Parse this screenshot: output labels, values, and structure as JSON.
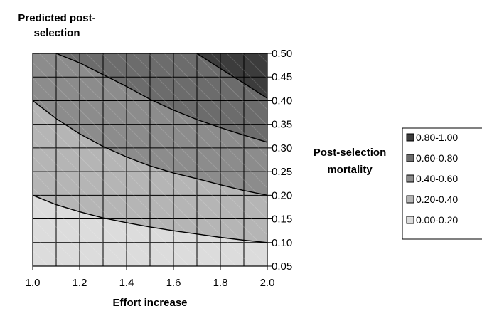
{
  "chart_data": {
    "type": "heatmap",
    "title_lines": [
      "Predicted post-",
      "selection"
    ],
    "xlabel": "Effort increase",
    "ylabel_lines": [
      "Post-selection",
      "mortality"
    ],
    "x_ticks": [
      "1.0",
      "1.2",
      "1.4",
      "1.6",
      "1.8",
      "2.0"
    ],
    "x_tick_values": [
      1.0,
      1.2,
      1.4,
      1.6,
      1.8,
      2.0
    ],
    "y_ticks": [
      "0.05",
      "0.10",
      "0.15",
      "0.20",
      "0.25",
      "0.30",
      "0.35",
      "0.40",
      "0.45",
      "0.50"
    ],
    "y_tick_values": [
      0.05,
      0.1,
      0.15,
      0.2,
      0.25,
      0.3,
      0.35,
      0.4,
      0.45,
      0.5
    ],
    "xlim": [
      1.0,
      2.0
    ],
    "ylim": [
      0.05,
      0.5
    ],
    "grid": true,
    "legend_position": "right",
    "bands": [
      {
        "name": "0.80-1.00",
        "range": [
          0.8,
          1.0
        ],
        "color": "#3c3c3c"
      },
      {
        "name": "0.60-0.80",
        "range": [
          0.6,
          0.8
        ],
        "color": "#6c6c6c"
      },
      {
        "name": "0.40-0.60",
        "range": [
          0.4,
          0.6
        ],
        "color": "#8c8c8c"
      },
      {
        "name": "0.20-0.40",
        "range": [
          0.2,
          0.4
        ],
        "color": "#b5b5b5"
      },
      {
        "name": "0.00-0.20",
        "range": [
          0.0,
          0.2
        ],
        "color": "#dcdcdc"
      }
    ],
    "contours": [
      {
        "level": 0.2,
        "points": [
          [
            1.0,
            0.2
          ],
          [
            1.1,
            0.18
          ],
          [
            1.2,
            0.165
          ],
          [
            1.3,
            0.152
          ],
          [
            1.4,
            0.142
          ],
          [
            1.5,
            0.133
          ],
          [
            1.6,
            0.125
          ],
          [
            1.7,
            0.118
          ],
          [
            1.8,
            0.111
          ],
          [
            1.9,
            0.105
          ],
          [
            2.0,
            0.1
          ]
        ]
      },
      {
        "level": 0.4,
        "points": [
          [
            1.0,
            0.4
          ],
          [
            1.1,
            0.362
          ],
          [
            1.2,
            0.33
          ],
          [
            1.3,
            0.303
          ],
          [
            1.4,
            0.281
          ],
          [
            1.5,
            0.262
          ],
          [
            1.6,
            0.247
          ],
          [
            1.7,
            0.235
          ],
          [
            1.8,
            0.222
          ],
          [
            1.9,
            0.21
          ],
          [
            2.0,
            0.2
          ]
        ]
      },
      {
        "level": 0.6,
        "points": [
          [
            1.1,
            0.5
          ],
          [
            1.2,
            0.48
          ],
          [
            1.3,
            0.455
          ],
          [
            1.4,
            0.43
          ],
          [
            1.5,
            0.403
          ],
          [
            1.6,
            0.38
          ],
          [
            1.7,
            0.36
          ],
          [
            1.8,
            0.343
          ],
          [
            1.9,
            0.327
          ],
          [
            2.0,
            0.312
          ]
        ]
      },
      {
        "level": 0.8,
        "points": [
          [
            1.7,
            0.5
          ],
          [
            1.8,
            0.468
          ],
          [
            1.9,
            0.437
          ],
          [
            2.0,
            0.405
          ]
        ]
      }
    ]
  }
}
